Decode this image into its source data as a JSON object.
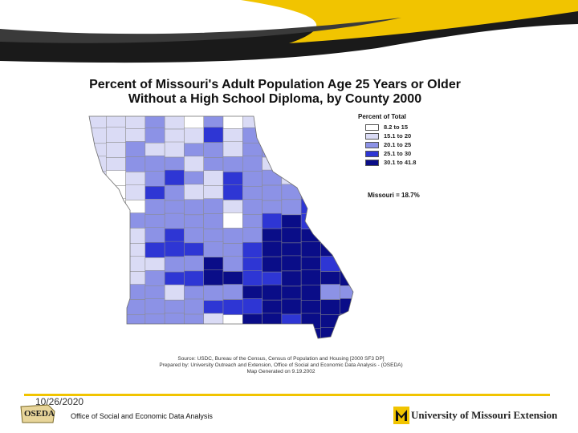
{
  "map": {
    "title_line1": "Percent of Missouri's Adult Population Age 25 Years or Older",
    "title_line2": "Without a High School Diploma, by County  2000",
    "region": "Missouri counties",
    "legend": {
      "title": "Percent of Total",
      "classes": [
        {
          "label": "8.2 to 15",
          "color": "#ffffff"
        },
        {
          "label": "15.1 to 20",
          "color": "#dadbf5"
        },
        {
          "label": "20.1 to 25",
          "color": "#8c92e6"
        },
        {
          "label": "25.1 to 30",
          "color": "#2e36d4"
        },
        {
          "label": "30.1 to 41.8",
          "color": "#0a0d88"
        }
      ]
    },
    "state_average": "Missouri = 18.7%",
    "source_lines": [
      "Source:  USDC, Bureau of the Census, Census of Population and Housing [2000 SF3 DP]",
      "Prepared by: University Outreach and Extension, Office of Social and Economic Data Analysis - (OSEDA)",
      "Map Generated on 9.19.2002"
    ]
  },
  "footer": {
    "date": "10/26/2020",
    "oseda_logo": "OSEDA",
    "org": "Office of Social and Economic Data Analysis",
    "university": "University of Missouri Extension"
  },
  "colors": {
    "accent": "#f1c400",
    "band_dark": "#1a1a1a",
    "county_outline": "#8a8a8a"
  }
}
